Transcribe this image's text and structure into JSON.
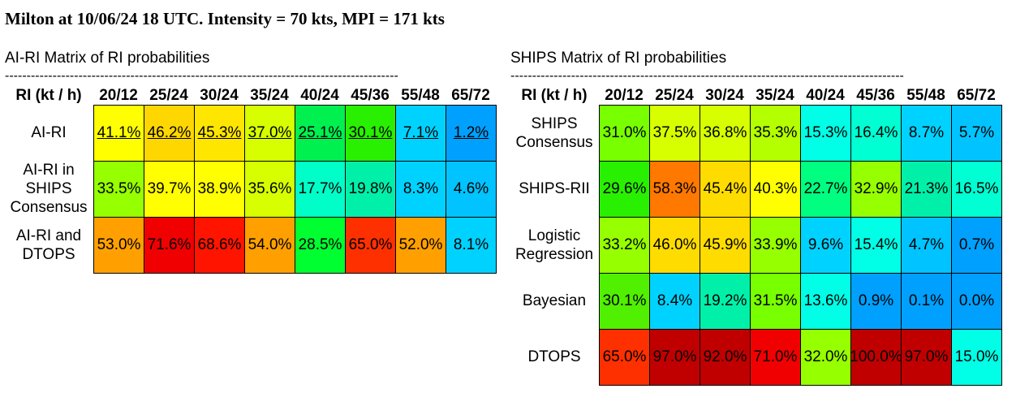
{
  "title": "Milton at 10/06/24 18 UTC. Intensity = 70 kts, MPI = 171 kts",
  "dashes": "-------------------------------------------------------------------------------------------",
  "left": {
    "heading": "AI-RI Matrix of RI probabilities",
    "corner": "RI (kt / h)",
    "columns": [
      "20/12",
      "25/24",
      "30/24",
      "35/24",
      "40/24",
      "45/36",
      "55/48",
      "65/72"
    ],
    "rows": [
      {
        "label": "AI-RI",
        "underline": true,
        "values": [
          "41.1%",
          "46.2%",
          "45.3%",
          "37.0%",
          "25.1%",
          "30.1%",
          "7.1%",
          "1.2%"
        ],
        "colors": [
          "#ffff00",
          "#ffd700",
          "#ffe600",
          "#d7ff00",
          "#00f050",
          "#28f000",
          "#00d2ff",
          "#00a0ff"
        ]
      },
      {
        "label": "AI-RI in SHIPS Consensus",
        "underline": false,
        "values": [
          "33.5%",
          "39.7%",
          "38.9%",
          "35.6%",
          "17.7%",
          "19.8%",
          "8.3%",
          "4.6%"
        ],
        "colors": [
          "#96ff00",
          "#ffff00",
          "#ffff00",
          "#d7ff00",
          "#00ffc8",
          "#00f0aa",
          "#00d2ff",
          "#00c3ff"
        ]
      },
      {
        "label": "AI-RI and DTOPS",
        "underline": false,
        "values": [
          "53.0%",
          "71.6%",
          "68.6%",
          "54.0%",
          "28.5%",
          "65.0%",
          "52.0%",
          "8.1%"
        ],
        "colors": [
          "#ffa000",
          "#f00000",
          "#ff1400",
          "#ffa000",
          "#00ff30",
          "#ff3000",
          "#ffa000",
          "#00d2ff"
        ]
      }
    ]
  },
  "right": {
    "heading": "SHIPS Matrix of RI probabilities",
    "corner": "RI (kt / h)",
    "columns": [
      "20/12",
      "25/24",
      "30/24",
      "35/24",
      "40/24",
      "45/36",
      "55/48",
      "65/72"
    ],
    "rows": [
      {
        "label": "SHIPS Consensus",
        "underline": false,
        "values": [
          "31.0%",
          "37.5%",
          "36.8%",
          "35.3%",
          "15.3%",
          "16.4%",
          "8.7%",
          "5.7%"
        ],
        "colors": [
          "#78ff00",
          "#d7ff00",
          "#d7ff00",
          "#b4ff00",
          "#00ffe6",
          "#00ffd2",
          "#00d2ff",
          "#00c3ff"
        ]
      },
      {
        "label": "SHIPS-RII",
        "underline": false,
        "values": [
          "29.6%",
          "58.3%",
          "45.4%",
          "40.3%",
          "22.7%",
          "32.9%",
          "21.3%",
          "16.5%"
        ],
        "colors": [
          "#28f000",
          "#ff7800",
          "#ffdc00",
          "#ffff00",
          "#00ff80",
          "#96ff00",
          "#00f0aa",
          "#00ffd2"
        ]
      },
      {
        "label": "Logistic Regression",
        "underline": false,
        "values": [
          "33.2%",
          "46.0%",
          "45.9%",
          "33.9%",
          "9.6%",
          "15.4%",
          "4.7%",
          "0.7%"
        ],
        "colors": [
          "#96ff00",
          "#ffdc00",
          "#ffdc00",
          "#96ff00",
          "#00d2ff",
          "#00ffe6",
          "#00c3ff",
          "#00a0ff"
        ]
      },
      {
        "label": "Bayesian",
        "underline": false,
        "values": [
          "30.1%",
          "8.4%",
          "19.2%",
          "31.5%",
          "13.6%",
          "0.9%",
          "0.1%",
          "0.0%"
        ],
        "colors": [
          "#50f000",
          "#00d2ff",
          "#00f0aa",
          "#78ff00",
          "#00ffe6",
          "#00a0ff",
          "#00a0ff",
          "#00a0ff"
        ]
      },
      {
        "label": "DTOPS",
        "underline": false,
        "values": [
          "65.0%",
          "97.0%",
          "92.0%",
          "71.0%",
          "32.0%",
          "100.0%",
          "97.0%",
          "15.0%"
        ],
        "colors": [
          "#ff3000",
          "#c00000",
          "#c00000",
          "#f00000",
          "#96ff00",
          "#c00000",
          "#c00000",
          "#00ffe6"
        ]
      }
    ]
  }
}
